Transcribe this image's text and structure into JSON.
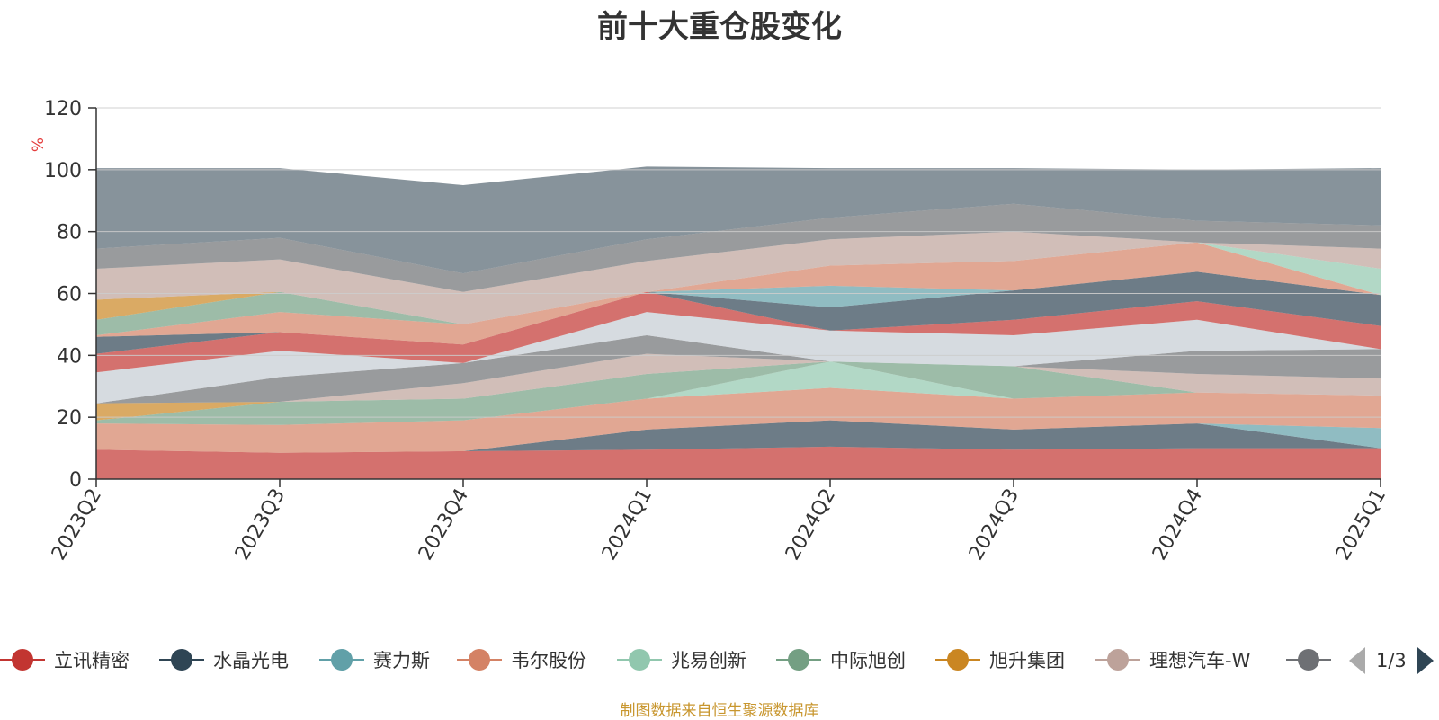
{
  "title": "前十大重仓股变化",
  "source_note": "制图数据来自恒生聚源数据库",
  "pager": {
    "text": "1/3"
  },
  "chart_data": {
    "type": "area",
    "stacked": true,
    "categories": [
      "2023Q2",
      "2023Q3",
      "2023Q4",
      "2024Q1",
      "2024Q2",
      "2024Q3",
      "2024Q4",
      "2025Q1"
    ],
    "ylabel": "%",
    "ylim": [
      0,
      120
    ],
    "yticks": [
      0,
      20,
      40,
      60,
      80,
      100,
      120
    ],
    "grid": true,
    "legend": [
      {
        "name": "立讯精密",
        "color": "#c23531"
      },
      {
        "name": "水晶光电",
        "color": "#2f4554"
      },
      {
        "name": "赛力斯",
        "color": "#61a0a8"
      },
      {
        "name": "韦尔股份",
        "color": "#d48265"
      },
      {
        "name": "兆易创新",
        "color": "#91c7ae"
      },
      {
        "name": "中际旭创",
        "color": "#749f83"
      },
      {
        "name": "旭升集团",
        "color": "#ca8622"
      },
      {
        "name": "理想汽车-W",
        "color": "#bda29a"
      },
      {
        "name": "",
        "color": "#6e7074"
      }
    ],
    "bands": [
      {
        "color": "#c23531",
        "values": [
          9.5,
          8.5,
          9,
          9.5,
          10.5,
          9.5,
          10,
          10
        ]
      },
      {
        "color": "#2f4554",
        "values": [
          0,
          0,
          0,
          6.5,
          8.5,
          6.5,
          8,
          0
        ]
      },
      {
        "color": "#61a0a8",
        "values": [
          0,
          0,
          0,
          0,
          0,
          0,
          0,
          6.5
        ]
      },
      {
        "color": "#d48265",
        "values": [
          8.5,
          9,
          10,
          10,
          10.5,
          10,
          10,
          10.5
        ]
      },
      {
        "color": "#91c7ae",
        "values": [
          0,
          0,
          0,
          0,
          8.5,
          0,
          0,
          0
        ]
      },
      {
        "color": "#749f83",
        "values": [
          1,
          7.5,
          7,
          8,
          0,
          10.5,
          0,
          0
        ]
      },
      {
        "color": "#ca8622",
        "values": [
          5.5,
          0,
          0,
          0,
          0,
          0,
          0,
          0
        ]
      },
      {
        "color": "#bda29a",
        "values": [
          0,
          0,
          5,
          6.5,
          0,
          0,
          6,
          5.5
        ]
      },
      {
        "color": "#6e7074",
        "values": [
          0,
          8,
          6.5,
          6,
          0,
          0,
          7.5,
          9.5
        ]
      },
      {
        "color": "#c4ccd3",
        "values": [
          10,
          8.5,
          0,
          7.5,
          10,
          10,
          10,
          0
        ]
      },
      {
        "color": "#c23531",
        "values": [
          6,
          6,
          6,
          6.5,
          0,
          5,
          6,
          7.5
        ]
      },
      {
        "color": "#2f4554",
        "values": [
          5.5,
          0,
          0,
          0,
          7.5,
          9.5,
          9.5,
          10
        ]
      },
      {
        "color": "#61a0a8",
        "values": [
          0,
          0,
          0,
          0,
          7,
          0,
          0,
          0
        ]
      },
      {
        "color": "#d48265",
        "values": [
          0.5,
          6.5,
          6.5,
          0,
          6.5,
          9.5,
          9.5,
          0
        ]
      },
      {
        "color": "#91c7ae",
        "values": [
          0,
          0,
          0,
          0,
          0,
          0,
          0,
          8.5
        ]
      },
      {
        "color": "#749f83",
        "values": [
          5,
          6.5,
          0,
          0,
          0,
          0,
          0,
          0
        ]
      },
      {
        "color": "#ca8622",
        "values": [
          6.5,
          0,
          0,
          0,
          0,
          0,
          0,
          0
        ]
      },
      {
        "color": "#bda29a",
        "values": [
          10,
          10.5,
          10.5,
          10,
          8.5,
          9.5,
          0,
          6.5
        ]
      },
      {
        "color": "#6e7074",
        "values": [
          6.5,
          7,
          6,
          7,
          7,
          9,
          7,
          7.5
        ]
      },
      {
        "color": "#546570",
        "values": [
          26,
          22.5,
          28.5,
          23.5,
          16,
          11.5,
          16.5,
          18.5
        ]
      }
    ]
  }
}
